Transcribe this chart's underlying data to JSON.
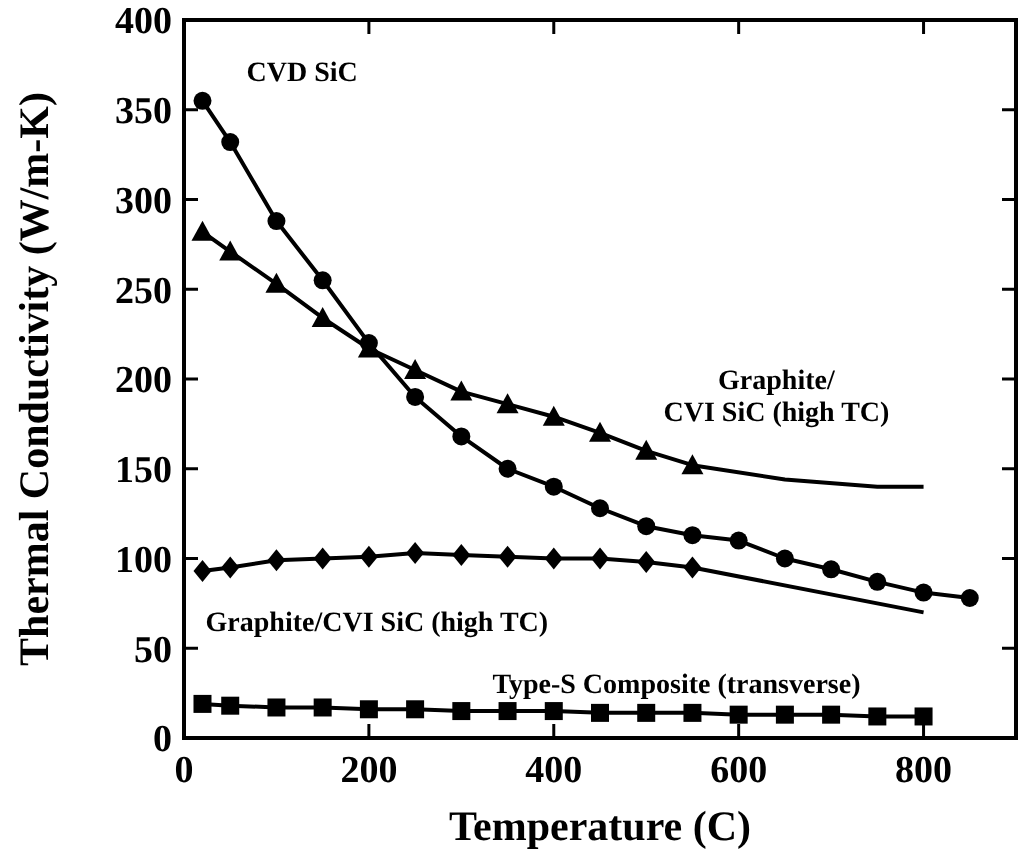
{
  "chart_data": {
    "type": "line",
    "xlabel": "Temperature (C)",
    "ylabel": "Thermal Conductivity (W/m-K)",
    "xlim": [
      0,
      900
    ],
    "xticks": [
      0,
      200,
      400,
      600,
      800
    ],
    "ylim": [
      0,
      400
    ],
    "yticks": [
      0,
      50,
      100,
      150,
      200,
      250,
      300,
      350,
      400
    ],
    "grid": false,
    "line_style": "solid",
    "series": [
      {
        "name": "CVD SiC",
        "color": "#000000",
        "marker": "circle",
        "x": [
          20,
          50,
          100,
          150,
          200,
          250,
          300,
          350,
          400,
          450,
          500,
          550,
          600,
          650,
          700,
          750,
          800,
          850
        ],
        "values": [
          355,
          332,
          288,
          255,
          220,
          190,
          168,
          150,
          140,
          128,
          118,
          113,
          110,
          100,
          94,
          87,
          81,
          78
        ]
      },
      {
        "name": "Graphite/\nCVI SiC (high TC)",
        "color": "#000000",
        "marker": "triangle",
        "x": [
          20,
          50,
          100,
          150,
          200,
          250,
          300,
          350,
          400,
          450,
          500,
          550
        ],
        "values": [
          282,
          271,
          253,
          234,
          217,
          205,
          193,
          186,
          179,
          170,
          160,
          152
        ]
      },
      {
        "color": "#000000",
        "marker": "none",
        "x": [
          550,
          650,
          750,
          800
        ],
        "values": [
          152,
          144,
          140,
          140
        ]
      },
      {
        "name": "Graphite/CVI SiC (high TC)",
        "color": "#000000",
        "marker": "diamond",
        "x": [
          20,
          50,
          100,
          150,
          200,
          250,
          300,
          350,
          400,
          450,
          500,
          550
        ],
        "values": [
          93,
          95,
          99,
          100,
          101,
          103,
          102,
          101,
          100,
          100,
          98,
          95
        ]
      },
      {
        "color": "#000000",
        "marker": "none",
        "x": [
          550,
          800
        ],
        "values": [
          95,
          70
        ]
      },
      {
        "name": "Type-S Composite (transverse)",
        "color": "#000000",
        "marker": "square",
        "x": [
          20,
          50,
          100,
          150,
          200,
          250,
          300,
          350,
          400,
          450,
          500,
          550,
          600,
          650,
          700,
          750,
          800
        ],
        "values": [
          19,
          18,
          17,
          17,
          16,
          16,
          15,
          15,
          15,
          14,
          14,
          14,
          13,
          13,
          13,
          12,
          12
        ]
      }
    ]
  }
}
